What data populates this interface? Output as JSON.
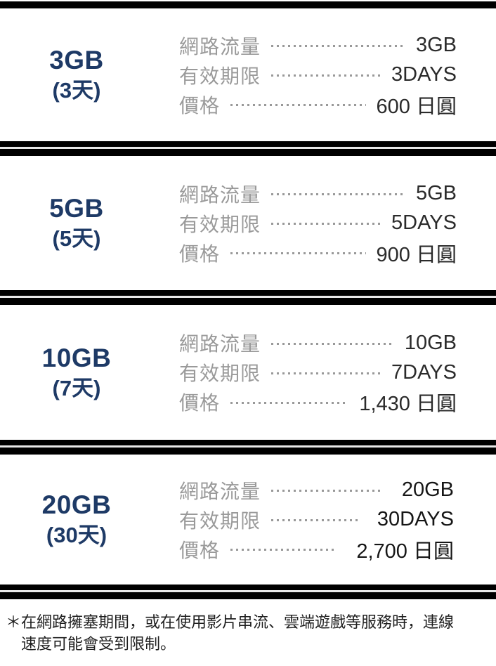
{
  "palette": {
    "background": "#ffffff",
    "divider_bar": "#000000",
    "divider_gap_line": "#e8e8e8",
    "plan_title": "#1e3a66",
    "spec_label": "#9a9a9a",
    "spec_value": "#2b2b2b",
    "boxed_value": "#161616",
    "dotted_leader": "#999999",
    "footnote_text": "#1f1f1f",
    "highlight_box": "#ffffff"
  },
  "plans": [
    {
      "size": "3GB",
      "duration": "(3天)",
      "rows": [
        {
          "label": "網路流量",
          "value": "3GB"
        },
        {
          "label": "有效期限",
          "value": "3DAYS"
        },
        {
          "label": "價格",
          "value": "600 日圓"
        }
      ]
    },
    {
      "size": "5GB",
      "duration": "(5天)",
      "rows": [
        {
          "label": "網路流量",
          "value": "5GB"
        },
        {
          "label": "有效期限",
          "value": "5DAYS"
        },
        {
          "label": "價格",
          "value": "900 日圓"
        }
      ]
    },
    {
      "size": "10GB",
      "duration": "(7天)",
      "rows": [
        {
          "label": "網路流量",
          "value": "10GB"
        },
        {
          "label": "有效期限",
          "value": "7DAYS"
        },
        {
          "label": "價格",
          "value": "1,430 日圓"
        }
      ]
    },
    {
      "size": "20GB",
      "duration": "(30天)",
      "rows": [
        {
          "label": "網路流量",
          "value": "20GB"
        },
        {
          "label": "有效期限",
          "value": "30DAYS"
        },
        {
          "label": "價格",
          "value": "2,700 日圓"
        }
      ]
    }
  ],
  "footnote": {
    "lines": [
      "＊在網路擁塞期間，或在使用影片串流、雲端遊戲等服務時，連線",
      "速度可能會受到限制。"
    ]
  }
}
